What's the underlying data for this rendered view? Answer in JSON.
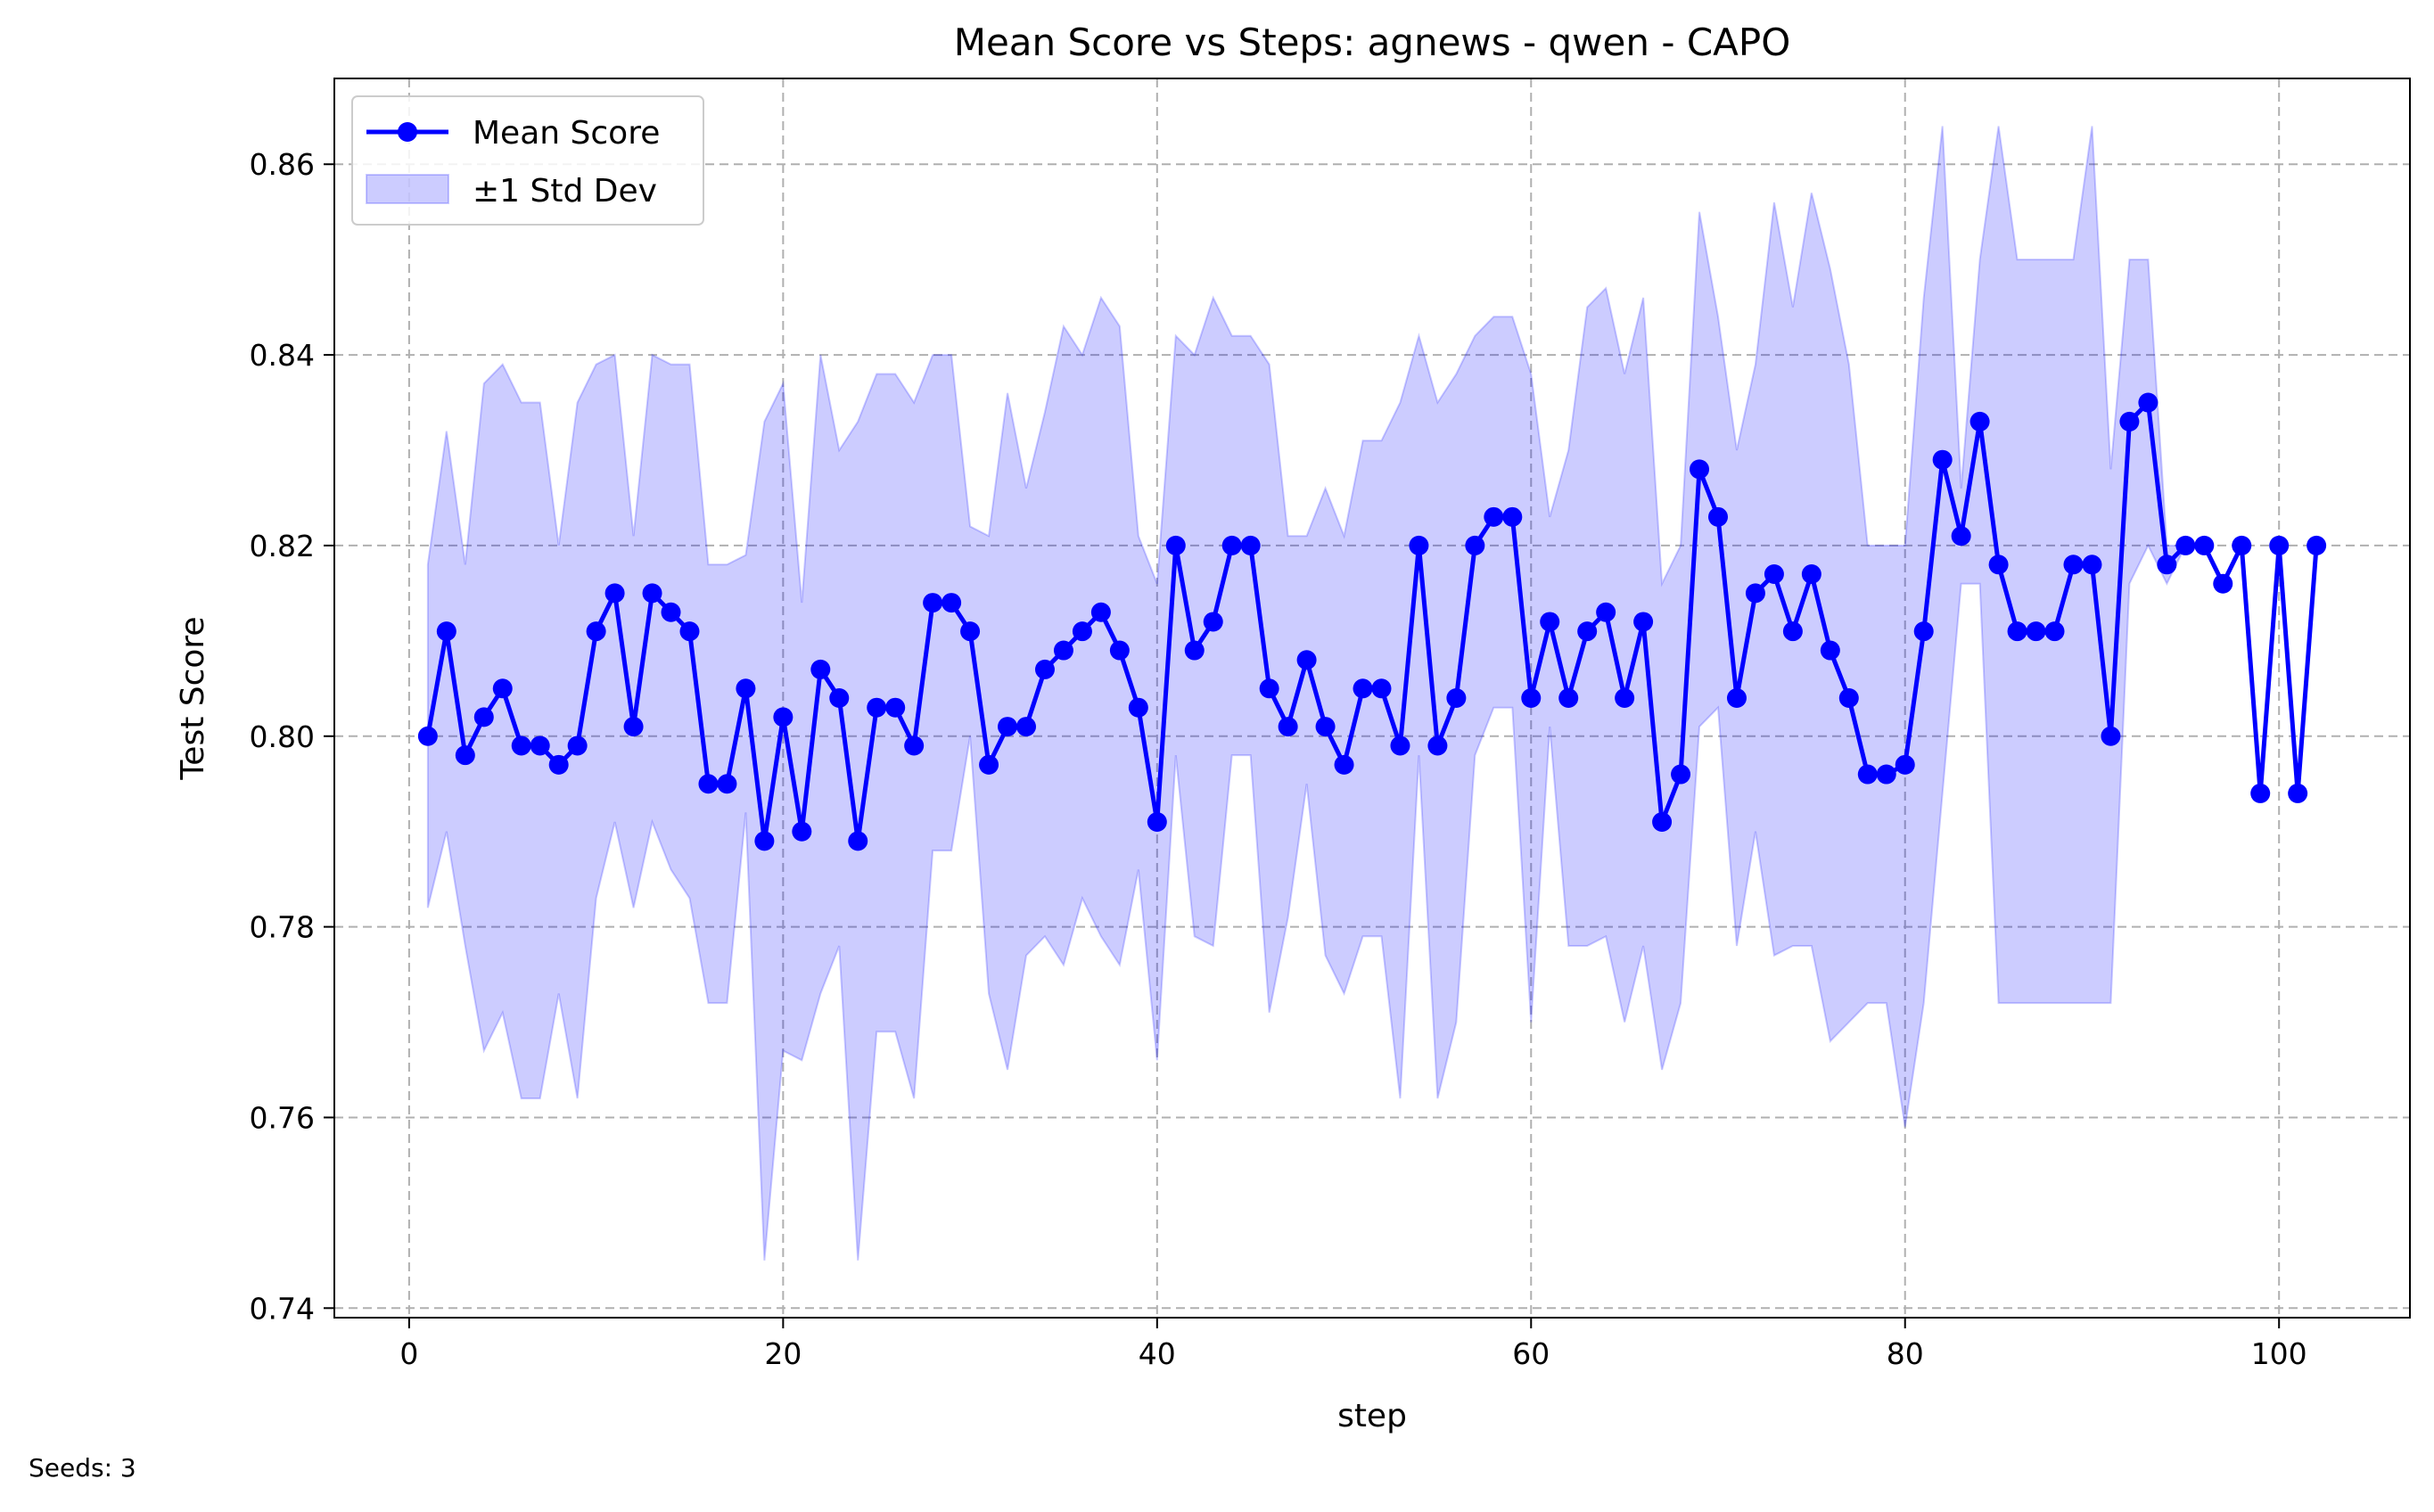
{
  "chart_data": {
    "type": "line",
    "title": "Mean Score vs Steps: agnews - qwen - CAPO",
    "xlabel": "step",
    "ylabel": "Test Score",
    "xlim": [
      -4,
      107
    ],
    "ylim": [
      0.739,
      0.869
    ],
    "xticks": [
      0,
      20,
      40,
      60,
      80,
      100
    ],
    "xtick_labels": [
      "0",
      "20",
      "40",
      "60",
      "80",
      "100"
    ],
    "yticks": [
      0.74,
      0.76,
      0.78,
      0.8,
      0.82,
      0.84,
      0.86
    ],
    "ytick_labels": [
      "0.74",
      "0.76",
      "0.78",
      "0.80",
      "0.82",
      "0.84",
      "0.86"
    ],
    "grid": true,
    "legend_position": "top-left",
    "colors": {
      "line": "#0000ff",
      "band": "#9999ff"
    },
    "x": [
      1,
      2,
      3,
      4,
      5,
      6,
      7,
      8,
      9,
      10,
      11,
      12,
      13,
      14,
      15,
      16,
      17,
      18,
      19,
      20,
      21,
      22,
      23,
      24,
      25,
      26,
      27,
      28,
      29,
      30,
      31,
      32,
      33,
      34,
      35,
      36,
      37,
      38,
      39,
      40,
      41,
      42,
      43,
      44,
      45,
      46,
      47,
      48,
      49,
      50,
      51,
      52,
      53,
      54,
      55,
      56,
      57,
      58,
      59,
      60,
      61,
      62,
      63,
      64,
      65,
      66,
      67,
      68,
      69,
      70,
      71,
      72,
      73,
      74,
      75,
      76,
      77,
      78,
      79,
      80,
      81,
      82,
      83,
      84,
      85,
      86,
      87,
      88,
      89,
      90,
      91,
      92,
      93,
      94,
      95,
      96,
      97,
      98,
      99,
      100,
      101,
      102
    ],
    "series": [
      {
        "name": "Mean Score",
        "values": [
          0.8,
          0.811,
          0.798,
          0.802,
          0.805,
          0.799,
          0.799,
          0.797,
          0.799,
          0.811,
          0.815,
          0.801,
          0.815,
          0.813,
          0.811,
          0.795,
          0.795,
          0.805,
          0.789,
          0.802,
          0.79,
          0.807,
          0.804,
          0.789,
          0.803,
          0.803,
          0.799,
          0.814,
          0.814,
          0.811,
          0.797,
          0.801,
          0.801,
          0.807,
          0.809,
          0.811,
          0.813,
          0.809,
          0.803,
          0.791,
          0.82,
          0.809,
          0.812,
          0.82,
          0.82,
          0.805,
          0.801,
          0.808,
          0.801,
          0.797,
          0.805,
          0.805,
          0.799,
          0.82,
          0.799,
          0.804,
          0.82,
          0.823,
          0.823,
          0.804,
          0.812,
          0.804,
          0.811,
          0.813,
          0.804,
          0.812,
          0.791,
          0.796,
          0.828,
          0.823,
          0.804,
          0.815,
          0.817,
          0.811,
          0.817,
          0.809,
          0.804,
          0.796,
          0.796,
          0.797,
          0.811,
          0.829,
          0.821,
          0.833,
          0.818,
          0.811,
          0.811,
          0.811,
          0.818,
          0.818,
          0.8,
          0.833,
          0.835,
          0.818,
          0.82,
          0.82,
          0.816,
          0.82,
          0.794,
          0.82,
          0.794,
          0.82
        ]
      },
      {
        "name": "±1 Std Dev",
        "upper": [
          0.818,
          0.832,
          0.818,
          0.837,
          0.839,
          0.835,
          0.835,
          0.82,
          0.835,
          0.839,
          0.84,
          0.821,
          0.84,
          0.839,
          0.839,
          0.818,
          0.818,
          0.819,
          0.833,
          0.837,
          0.814,
          0.84,
          0.83,
          0.833,
          0.838,
          0.838,
          0.835,
          0.84,
          0.84,
          0.822,
          0.821,
          0.836,
          0.826,
          0.834,
          0.843,
          0.84,
          0.846,
          0.843,
          0.821,
          0.816,
          0.842,
          0.84,
          0.846,
          0.842,
          0.842,
          0.839,
          0.821,
          0.821,
          0.826,
          0.821,
          0.831,
          0.831,
          0.835,
          0.842,
          0.835,
          0.838,
          0.842,
          0.844,
          0.844,
          0.838,
          0.823,
          0.83,
          0.845,
          0.847,
          0.838,
          0.846,
          0.816,
          0.82,
          0.855,
          0.844,
          0.83,
          0.839,
          0.856,
          0.845,
          0.857,
          0.849,
          0.839,
          0.82,
          0.82,
          0.82,
          0.846,
          0.864,
          0.826,
          0.85,
          0.864,
          0.85,
          0.85,
          0.85,
          0.85,
          0.864,
          0.828,
          0.85,
          0.85,
          0.82,
          0.82,
          0.82,
          0.816,
          0.82,
          0.794,
          0.82,
          0.794,
          0.82
        ],
        "lower": [
          0.782,
          0.79,
          0.778,
          0.767,
          0.771,
          0.762,
          0.762,
          0.773,
          0.762,
          0.783,
          0.791,
          0.782,
          0.791,
          0.786,
          0.783,
          0.772,
          0.772,
          0.792,
          0.745,
          0.767,
          0.766,
          0.773,
          0.778,
          0.745,
          0.769,
          0.769,
          0.762,
          0.788,
          0.788,
          0.8,
          0.773,
          0.765,
          0.777,
          0.779,
          0.776,
          0.783,
          0.779,
          0.776,
          0.786,
          0.766,
          0.798,
          0.779,
          0.778,
          0.798,
          0.798,
          0.771,
          0.781,
          0.795,
          0.777,
          0.773,
          0.779,
          0.779,
          0.762,
          0.798,
          0.762,
          0.77,
          0.798,
          0.803,
          0.803,
          0.77,
          0.801,
          0.778,
          0.778,
          0.779,
          0.77,
          0.778,
          0.765,
          0.772,
          0.801,
          0.803,
          0.778,
          0.79,
          0.777,
          0.778,
          0.778,
          0.768,
          0.77,
          0.772,
          0.772,
          0.759,
          0.772,
          0.794,
          0.816,
          0.816,
          0.772,
          0.772,
          0.772,
          0.772,
          0.772,
          0.772,
          0.772,
          0.816,
          0.82,
          0.816,
          0.82,
          0.82,
          0.816,
          0.82,
          0.794,
          0.82,
          0.794,
          0.82
        ]
      }
    ]
  },
  "footer": {
    "seeds": "Seeds: 3"
  }
}
